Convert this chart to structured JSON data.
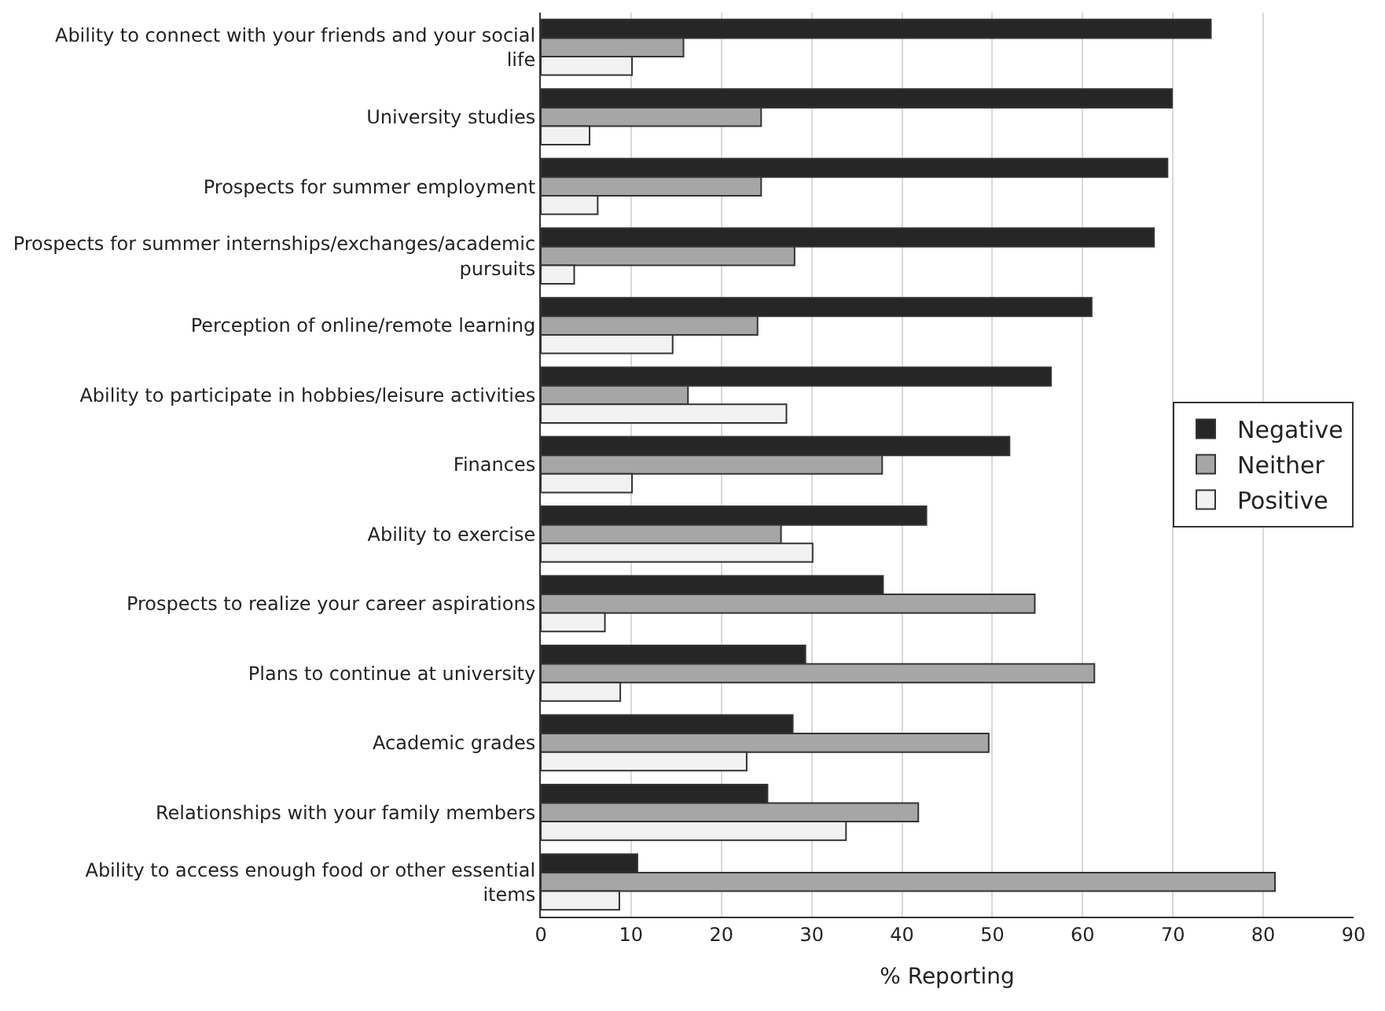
{
  "chart_data": {
    "type": "bar",
    "orientation": "horizontal",
    "xlabel": "% Reporting",
    "categories": [
      "Ability to connect with your friends and your social life",
      "University studies",
      "Prospects for summer employment",
      "Prospects for summer internships/exchanges/academic pursuits",
      "Perception of online/remote learning",
      "Ability to participate in hobbies/leisure activities",
      "Finances",
      "Ability to exercise",
      "Prospects to realize your career aspirations",
      "Plans to continue at university",
      "Academic grades",
      "Relationships with your family members",
      "Ability to access enough food or other essential items"
    ],
    "series": [
      {
        "name": "Negative",
        "color": "#262626",
        "values": [
          74.2,
          69.9,
          69.4,
          67.9,
          61.0,
          56.5,
          51.9,
          42.7,
          37.9,
          29.3,
          27.9,
          25.1,
          10.7
        ]
      },
      {
        "name": "Neither",
        "color": "#a6a6a6",
        "values": [
          15.8,
          24.4,
          24.4,
          28.1,
          24.0,
          16.3,
          37.8,
          26.6,
          54.7,
          61.3,
          49.6,
          41.8,
          81.3
        ]
      },
      {
        "name": "Positive",
        "color": "#f2f2f2",
        "values": [
          10.1,
          5.4,
          6.3,
          3.7,
          14.6,
          27.2,
          10.1,
          30.1,
          7.1,
          8.8,
          22.8,
          33.8,
          8.7
        ]
      }
    ],
    "xlim": [
      0,
      90
    ],
    "xticks": [
      0,
      10,
      20,
      30,
      40,
      50,
      60,
      70,
      80,
      90
    ],
    "grid": "x",
    "legend": "right"
  }
}
